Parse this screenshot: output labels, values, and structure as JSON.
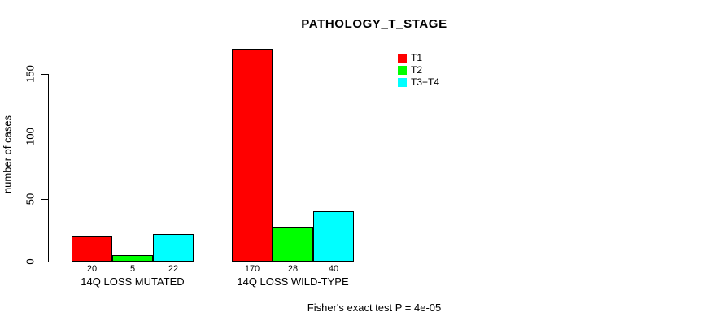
{
  "chart_data": {
    "type": "bar",
    "title": "PATHOLOGY_T_STAGE",
    "ylabel": "number of cases",
    "xlabel": "",
    "categories": [
      "14Q LOSS MUTATED",
      "14Q LOSS WILD-TYPE"
    ],
    "series": [
      {
        "name": "T1",
        "color": "#ff0000",
        "values": [
          20,
          170
        ]
      },
      {
        "name": "T2",
        "color": "#00ff00",
        "values": [
          5,
          28
        ]
      },
      {
        "name": "T3+T4",
        "color": "#00ffff",
        "values": [
          22,
          40
        ]
      }
    ],
    "bar_value_labels": [
      [
        "20",
        "5",
        "22"
      ],
      [
        "170",
        "28",
        "40"
      ]
    ],
    "ylim": [
      0,
      170
    ],
    "yticks": [
      0,
      50,
      100,
      150
    ],
    "grid": false,
    "legend_position": "top-right",
    "legend": [
      {
        "label": "T1",
        "color": "#ff0000"
      },
      {
        "label": "T2",
        "color": "#00ff00"
      },
      {
        "label": "T3+T4",
        "color": "#00ffff"
      }
    ],
    "annotation": "Fisher's exact test P = 4e-05",
    "bar_border_color": "#000000",
    "background_color": "#ffffff"
  }
}
